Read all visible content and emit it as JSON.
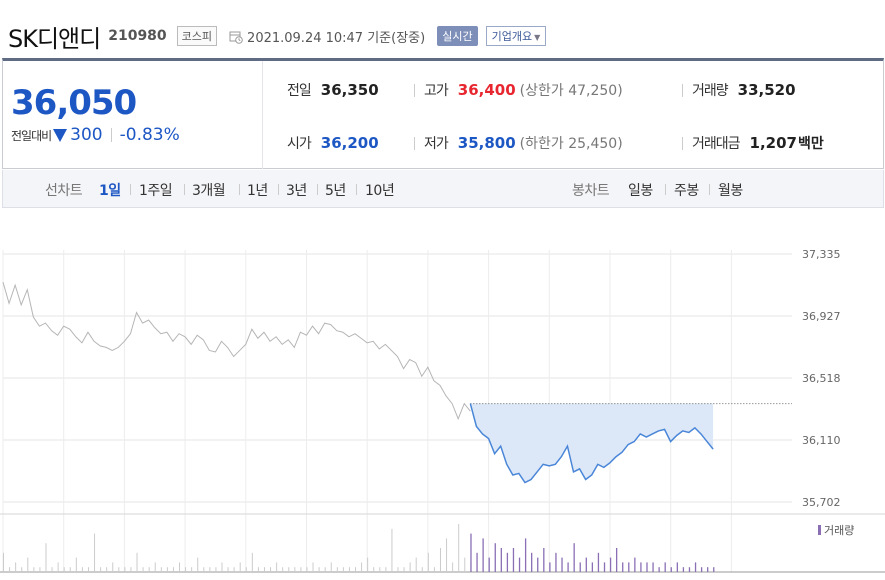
{
  "header": {
    "company_name": "SK디앤디",
    "stock_code": "210980",
    "market": "코스피",
    "datetime": "2021.09.24 10:47  기준(장중)",
    "realtime_label": "실시간",
    "overview_label": "기업개요"
  },
  "quote": {
    "current_price": "36,050",
    "change_label": "전일대비",
    "change_value": "300",
    "change_rate": "-0.83%",
    "prev_close_label": "전일",
    "prev_close": "36,350",
    "open_label": "시가",
    "open": "36,200",
    "high_label": "고가",
    "high": "36,400",
    "upper_limit": "(상한가 47,250)",
    "low_label": "저가",
    "low": "35,800",
    "lower_limit": "(하한가 25,450)",
    "volume_label": "거래량",
    "volume": "33,520",
    "amount_label": "거래대금",
    "amount": "1,207",
    "amount_unit": "백만"
  },
  "periods": {
    "line_label": "선차트",
    "line": [
      "1일",
      "1주일",
      "3개월",
      "1년",
      "3년",
      "5년",
      "10년"
    ],
    "active": "1일",
    "candle_label": "봉차트",
    "candle": [
      "일봉",
      "주봉",
      "월봉"
    ]
  },
  "colors": {
    "up": "#e8262f",
    "down": "#1d57c4",
    "today_line": "#4a86d8",
    "today_fill": "#dce8f8",
    "prev_line": "#b5b5b5",
    "volume_today": "#8a6fb5",
    "volume_prev": "#cccccc"
  },
  "chart_data": {
    "type": "line",
    "y_ticks": [
      "37,335",
      "36,927",
      "36,518",
      "36,110",
      "35,702"
    ],
    "ylim": [
      35702,
      37335
    ],
    "reference_price": 36350,
    "series": [
      {
        "values": [
          37150,
          37010,
          37130,
          37000,
          37100,
          36920,
          36860,
          36880,
          36830,
          36800,
          36860,
          36840,
          36790,
          36750,
          36820,
          36760,
          36730,
          36720,
          36700,
          36720,
          36760,
          36810,
          36950,
          36880,
          36900,
          36850,
          36810,
          36820,
          36760,
          36810,
          36790,
          36740,
          36800,
          36770,
          36700,
          36690,
          36760,
          36720,
          36660,
          36700,
          36740,
          36840,
          36780,
          36820,
          36760,
          36790,
          36740,
          36770,
          36720,
          36820,
          36800,
          36860,
          36810,
          36880,
          36870,
          36830,
          36820,
          36790,
          36810,
          36780,
          36750,
          36760,
          36710,
          36740,
          36700,
          36660,
          36580,
          36640,
          36620,
          36530,
          36590,
          36500,
          36470,
          36400,
          36350,
          36250,
          36350,
          36300
        ]
      },
      {
        "values": [
          36350,
          36200,
          36150,
          36120,
          36020,
          36070,
          35950,
          35880,
          35890,
          35830,
          35850,
          35900,
          35950,
          35940,
          35950,
          36000,
          36070,
          35900,
          35920,
          35850,
          35880,
          35950,
          35930,
          35960,
          36000,
          36030,
          36080,
          36100,
          36150,
          36130,
          36150,
          36170,
          36180,
          36100,
          36140,
          36170,
          36160,
          36190,
          36150,
          36100,
          36050
        ]
      }
    ],
    "volume": {
      "label": "거래량",
      "series": [
        {
          "values": [
            4,
            1,
            2,
            1,
            3,
            1,
            1,
            6,
            1,
            2,
            1,
            1,
            3,
            1,
            1,
            8,
            1,
            1,
            2,
            1,
            1,
            1,
            4,
            1,
            1,
            2,
            1,
            1,
            1,
            2,
            1,
            1,
            3,
            1,
            1,
            1,
            2,
            1,
            1,
            2,
            1,
            4,
            1,
            1,
            1,
            2,
            1,
            1,
            1,
            1,
            1,
            2,
            1,
            1,
            2,
            1,
            1,
            1,
            1,
            2,
            3,
            1,
            1,
            1,
            9,
            1,
            1,
            2,
            3,
            1,
            4,
            1,
            5,
            7,
            2,
            10,
            3,
            2
          ]
        },
        {
          "values": [
            8,
            4,
            7,
            3,
            6,
            5,
            4,
            5,
            3,
            7,
            4,
            3,
            5,
            2,
            4,
            3,
            2,
            6,
            2,
            3,
            2,
            4,
            2,
            3,
            5,
            2,
            2,
            3,
            2,
            2,
            2,
            1,
            2,
            1,
            2,
            1,
            1,
            2,
            1,
            1,
            1
          ]
        }
      ]
    }
  }
}
